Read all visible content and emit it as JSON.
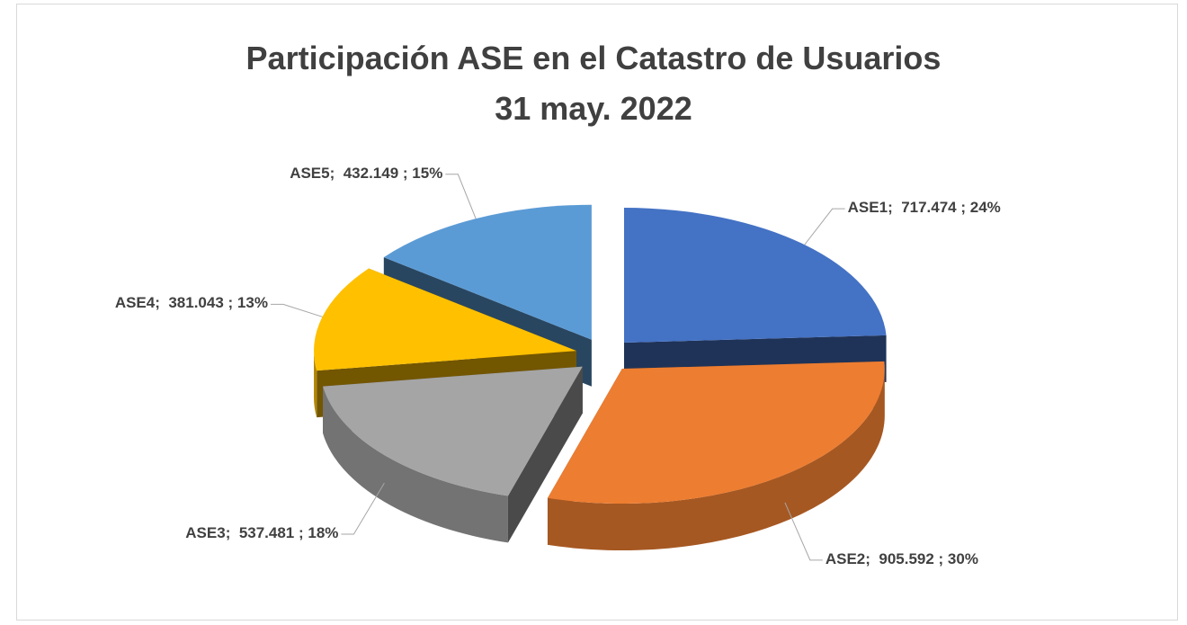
{
  "chart_data": {
    "type": "pie",
    "title": "Participación ASE en el Catastro de Usuarios",
    "subtitle": "31 may. 2022",
    "categories": [
      "ASE1",
      "ASE2",
      "ASE3",
      "ASE4",
      "ASE5"
    ],
    "values": [
      717474,
      905592,
      537481,
      381043,
      432149
    ],
    "value_labels": [
      "717.474",
      "905.592",
      "537.481",
      "381.043",
      "432.149"
    ],
    "percents": [
      24,
      30,
      18,
      13,
      15
    ],
    "percent_labels": [
      "24%",
      "30%",
      "18%",
      "13%",
      "15%"
    ],
    "colors": [
      "#4472c4",
      "#ed7d31",
      "#a5a5a5",
      "#ffc000",
      "#5b9bd5"
    ]
  }
}
